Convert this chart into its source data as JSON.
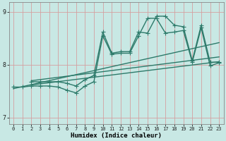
{
  "xlabel": "Humidex (Indice chaleur)",
  "bg_color": "#c8e8e4",
  "line_color": "#2d7a6a",
  "grid_color": "#d4a0a0",
  "xlim": [
    -0.5,
    23.5
  ],
  "ylim": [
    6.88,
    9.18
  ],
  "yticks": [
    7,
    8,
    9
  ],
  "xticks": [
    0,
    1,
    2,
    3,
    4,
    5,
    6,
    7,
    8,
    9,
    10,
    11,
    12,
    13,
    14,
    15,
    16,
    17,
    18,
    19,
    20,
    21,
    22,
    23
  ],
  "spike_x": [
    0,
    1,
    2,
    3,
    4,
    5,
    6,
    7,
    8,
    9,
    10,
    11,
    12,
    13,
    14,
    15,
    16,
    17,
    18,
    19,
    20,
    21,
    22,
    23
  ],
  "spike_y": [
    7.58,
    7.58,
    7.6,
    7.6,
    7.6,
    7.58,
    7.52,
    7.47,
    7.6,
    7.68,
    8.55,
    8.2,
    8.22,
    8.22,
    8.55,
    8.88,
    8.88,
    8.6,
    8.62,
    8.65,
    8.05,
    8.7,
    7.98,
    8.04
  ],
  "upper_x": [
    2,
    3,
    4,
    5,
    6,
    7,
    8,
    9,
    10,
    11,
    12,
    13,
    14,
    15,
    16,
    17,
    18,
    19,
    20,
    21,
    22,
    23
  ],
  "upper_y": [
    7.68,
    7.68,
    7.68,
    7.68,
    7.65,
    7.6,
    7.72,
    7.8,
    8.62,
    8.22,
    8.25,
    8.25,
    8.62,
    8.6,
    8.92,
    8.92,
    8.75,
    8.72,
    8.08,
    8.75,
    8.05,
    8.05
  ],
  "line1_x": [
    0.0,
    23.0
  ],
  "line1_y": [
    7.55,
    8.42
  ],
  "line2_x": [
    2.0,
    23.0
  ],
  "line2_y": [
    7.7,
    8.15
  ],
  "line3_x": [
    2.0,
    23.0
  ],
  "line3_y": [
    7.62,
    8.06
  ],
  "marker_size": 2.5,
  "lw": 1.0
}
